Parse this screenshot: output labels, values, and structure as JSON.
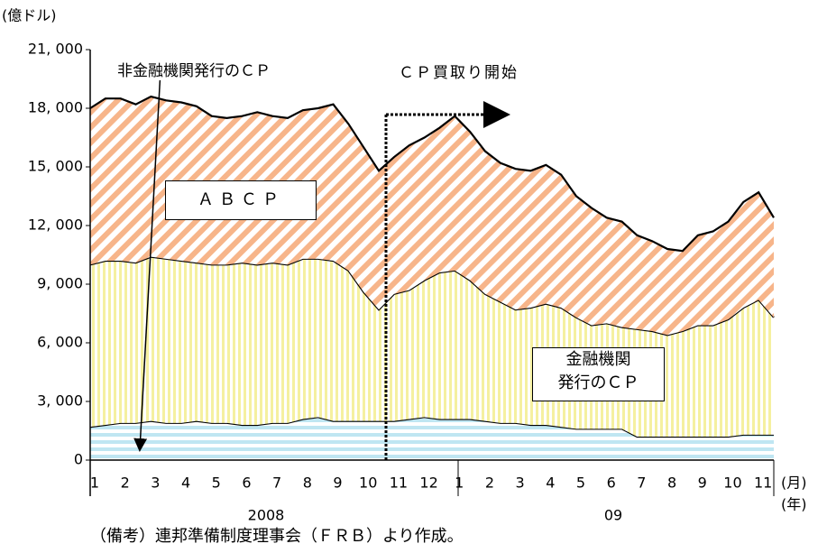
{
  "chart_data": {
    "type": "stacked_area",
    "y_unit": "(億ドル)",
    "x_unit_month": "(月)",
    "x_unit_year": "(年)",
    "years": [
      "2008",
      "09"
    ],
    "note": "（備考）連邦準備制度理事会（ＦＲＢ）より作成。",
    "event_annotation": "ＣＰ買取り開始",
    "categories": [
      "1",
      null,
      "2",
      null,
      "3",
      null,
      "4",
      null,
      "5",
      null,
      "6",
      null,
      "7",
      null,
      "8",
      null,
      "9",
      null,
      "10",
      null,
      "11",
      null,
      "12",
      null,
      "1",
      null,
      "2",
      null,
      "3",
      null,
      "4",
      null,
      "5",
      null,
      "6",
      null,
      "7",
      null,
      "8",
      null,
      "9",
      null,
      "10",
      null,
      "11",
      null
    ],
    "series": [
      {
        "name": "非金融機関発行のＣＰ",
        "color": "#bfe6f2",
        "values": [
          1700,
          1800,
          1900,
          1900,
          2000,
          1900,
          1900,
          2000,
          1900,
          1900,
          1800,
          1800,
          1900,
          1900,
          2100,
          2200,
          2000,
          2000,
          2000,
          2000,
          2000,
          2100,
          2200,
          2100,
          2100,
          2100,
          2000,
          1900,
          1900,
          1800,
          1800,
          1700,
          1600,
          1600,
          1600,
          1600,
          1200,
          1200,
          1200,
          1200,
          1200,
          1200,
          1200,
          1300,
          1300,
          1300
        ]
      },
      {
        "name": "金融機関\n発行のＣＰ",
        "color": "#f5f0a0",
        "values": [
          8300,
          8400,
          8300,
          8200,
          8400,
          8400,
          8300,
          8100,
          8100,
          8100,
          8300,
          8200,
          8200,
          8100,
          8200,
          8100,
          8200,
          7700,
          6600,
          5700,
          6500,
          6600,
          7000,
          7500,
          7600,
          7100,
          6500,
          6200,
          5800,
          6000,
          6200,
          6100,
          5700,
          5300,
          5400,
          5200,
          5500,
          5400,
          5200,
          5400,
          5700,
          5700,
          6000,
          6500,
          6900,
          6000
        ]
      },
      {
        "name": "ＡＢＣＰ",
        "color": "#f7b58a",
        "values": [
          8000,
          8300,
          8300,
          8100,
          8200,
          8100,
          8100,
          8000,
          7600,
          7500,
          7500,
          7800,
          7500,
          7500,
          7600,
          7700,
          8000,
          7500,
          7400,
          7100,
          7000,
          7400,
          7300,
          7400,
          7900,
          7600,
          7300,
          7100,
          7200,
          7000,
          7100,
          6800,
          6200,
          6000,
          5400,
          5400,
          4800,
          4600,
          4400,
          4100,
          4600,
          4800,
          5000,
          5400,
          5500,
          5100
        ]
      }
    ],
    "ylim": [
      0,
      21000
    ],
    "yticks": [
      0,
      {
        "value": 3000,
        "label": "3, 000"
      },
      {
        "value": 6000,
        "label": "6, 000"
      },
      {
        "value": 9000,
        "label": "9, 000"
      },
      {
        "value": 12000,
        "label": "12, 000"
      },
      {
        "value": 15000,
        "label": "15, 000"
      },
      {
        "value": 18000,
        "label": "18, 000"
      },
      {
        "value": 21000,
        "label": "21, 000"
      }
    ]
  }
}
